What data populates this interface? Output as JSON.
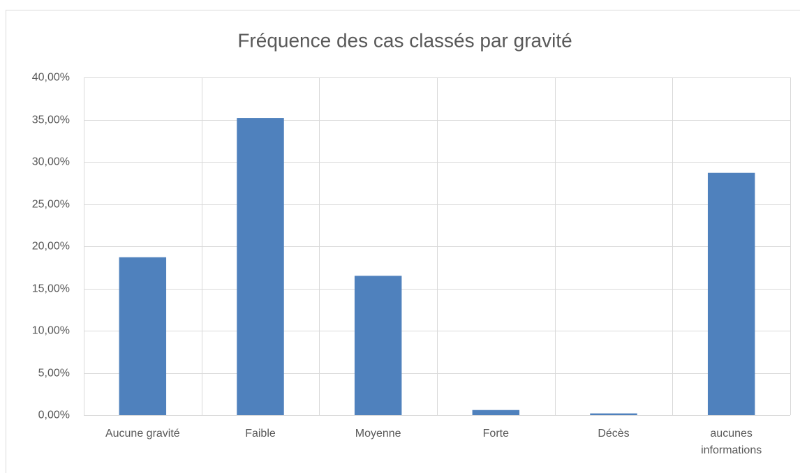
{
  "chart_data": {
    "type": "bar",
    "title": "Fréquence des cas classés par gravité",
    "categories": [
      "Aucune gravité",
      "Faible",
      "Moyenne",
      "Forte",
      "Décès",
      "aucunes informations"
    ],
    "values": [
      18.7,
      35.2,
      16.5,
      0.6,
      0.2,
      28.7
    ],
    "color": "#4f81bd",
    "ylim": [
      0,
      40
    ],
    "yticks": [
      {
        "value": 0,
        "label": "0,00%"
      },
      {
        "value": 5,
        "label": "5,00%"
      },
      {
        "value": 10,
        "label": "10,00%"
      },
      {
        "value": 15,
        "label": "15,00%"
      },
      {
        "value": 20,
        "label": "20,00%"
      },
      {
        "value": 25,
        "label": "25,00%"
      },
      {
        "value": 30,
        "label": "30,00%"
      },
      {
        "value": 35,
        "label": "35,00%"
      },
      {
        "value": 40,
        "label": "40,00%"
      }
    ],
    "grid": true
  }
}
